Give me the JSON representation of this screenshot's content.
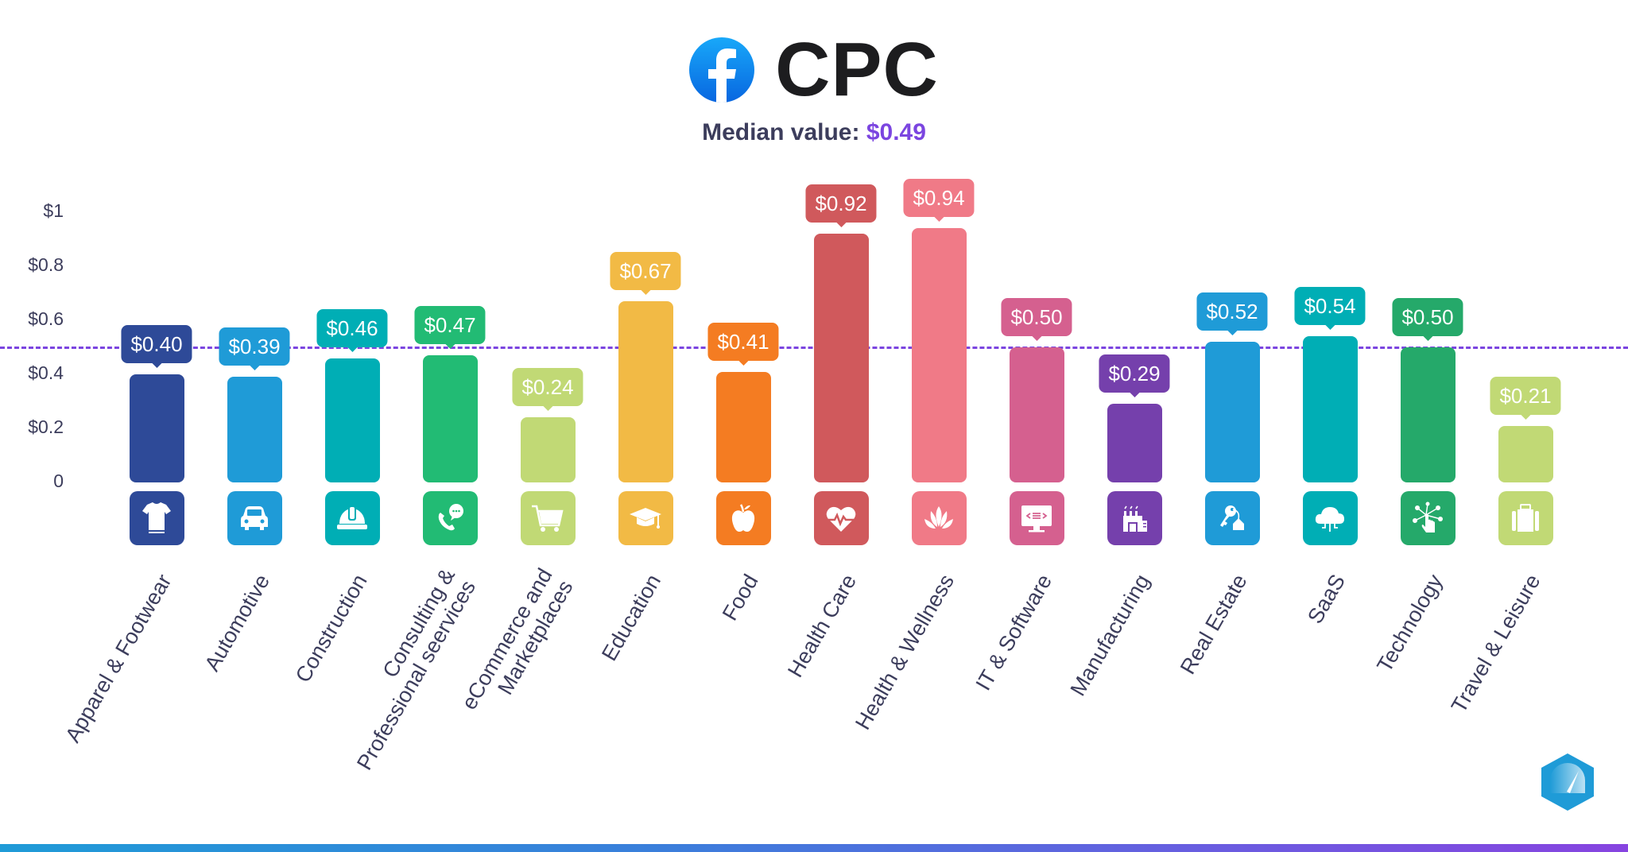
{
  "header": {
    "title": "CPC",
    "subtitle_label": "Median value:",
    "subtitle_value": "$0.49",
    "logo_icon": "facebook-icon"
  },
  "colors": {
    "median_line": "#7b45e0",
    "title_text": "#1d1d1f",
    "axis_text": "#3c3d5c"
  },
  "chart_data": {
    "type": "bar",
    "title": "CPC",
    "subtitle": "Median value: $0.49",
    "xlabel": "",
    "ylabel": "",
    "ylim": [
      0,
      1
    ],
    "y_ticks": [
      "0",
      "$0.2",
      "$0.4",
      "$0.6",
      "$0.8",
      "$1"
    ],
    "grid": false,
    "legend": "none",
    "reference_line": {
      "label": "Median",
      "value": 0.49,
      "style": "dashed",
      "color": "#7b45e0"
    },
    "categories": [
      "Apparel & Footwear",
      "Automotive",
      "Construction",
      "Consulting & Professional seervices",
      "eCommerce and Marketplaces",
      "Education",
      "Food",
      "Health Care",
      "Health & Wellness",
      "IT & Software",
      "Manufacturing",
      "Real Estate",
      "SaaS",
      "Technology",
      "Travel & Leisure"
    ],
    "values": [
      0.4,
      0.39,
      0.46,
      0.47,
      0.24,
      0.67,
      0.41,
      0.92,
      0.94,
      0.5,
      0.29,
      0.52,
      0.54,
      0.5,
      0.21
    ],
    "value_labels": [
      "$0.40",
      "$0.39",
      "$0.46",
      "$0.47",
      "$0.24",
      "$0.67",
      "$0.41",
      "$0.92",
      "$0.94",
      "$0.50",
      "$0.29",
      "$0.52",
      "$0.54",
      "$0.50",
      "$0.21"
    ],
    "bar_colors": [
      "#2e4a98",
      "#1f9bd7",
      "#00aeb5",
      "#22bb74",
      "#c1d975",
      "#f2ba45",
      "#f47c22",
      "#d0595c",
      "#f07a87",
      "#d5608f",
      "#7540ac",
      "#1f9bd7",
      "#00aeb5",
      "#25a96a",
      "#c1d975"
    ]
  },
  "bars": [
    {
      "label": "Apparel & Footwear",
      "line1": "Apparel & Footwear",
      "line2": "",
      "value": "$0.40",
      "icon": "tshirt-icon"
    },
    {
      "label": "Automotive",
      "line1": "Automotive",
      "line2": "",
      "value": "$0.39",
      "icon": "car-icon"
    },
    {
      "label": "Construction",
      "line1": "Construction",
      "line2": "",
      "value": "$0.46",
      "icon": "hard-hat-icon"
    },
    {
      "label": "Consulting & Professional seervices",
      "line1": "Consulting &",
      "line2": "Professional seervices",
      "value": "$0.47",
      "icon": "phone-chat-icon"
    },
    {
      "label": "eCommerce and Marketplaces",
      "line1": "eCommerce and",
      "line2": "Marketplaces",
      "value": "$0.24",
      "icon": "shopping-cart-icon"
    },
    {
      "label": "Education",
      "line1": "Education",
      "line2": "",
      "value": "$0.67",
      "icon": "graduation-cap-icon"
    },
    {
      "label": "Food",
      "line1": "Food",
      "line2": "",
      "value": "$0.41",
      "icon": "apple-icon"
    },
    {
      "label": "Health Care",
      "line1": "Health Care",
      "line2": "",
      "value": "$0.92",
      "icon": "heartbeat-icon"
    },
    {
      "label": "Health & Wellness",
      "line1": "Health & Wellness",
      "line2": "",
      "value": "$0.94",
      "icon": "lotus-icon"
    },
    {
      "label": "IT & Software",
      "line1": "IT & Software",
      "line2": "",
      "value": "$0.50",
      "icon": "code-monitor-icon"
    },
    {
      "label": "Manufacturing",
      "line1": "Manufacturing",
      "line2": "",
      "value": "$0.29",
      "icon": "factory-icon"
    },
    {
      "label": "Real Estate",
      "line1": "Real Estate",
      "line2": "",
      "value": "$0.52",
      "icon": "house-key-icon"
    },
    {
      "label": "SaaS",
      "line1": "SaaS",
      "line2": "",
      "value": "$0.54",
      "icon": "cloud-icon"
    },
    {
      "label": "Technology",
      "line1": "Technology",
      "line2": "",
      "value": "$0.50",
      "icon": "network-touch-icon"
    },
    {
      "label": "Travel & Leisure",
      "line1": "Travel & Leisure",
      "line2": "",
      "value": "$0.21",
      "icon": "suitcase-icon"
    }
  ],
  "brand_badge": {
    "icon": "brand-hexagon-icon"
  }
}
